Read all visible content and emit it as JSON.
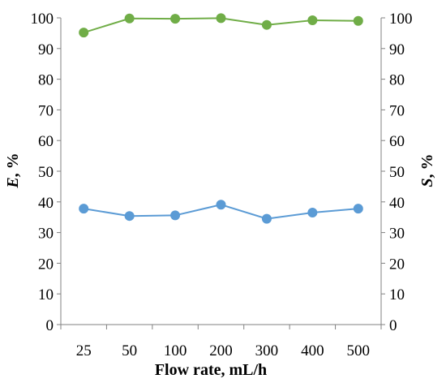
{
  "chart_data": {
    "type": "line",
    "categories": [
      "25",
      "50",
      "100",
      "200",
      "300",
      "400",
      "500"
    ],
    "xlabel": "Flow rate, mL/h",
    "ylabel_left": {
      "symbol": "E",
      "rest": ", %"
    },
    "ylabel_right": {
      "symbol": "S",
      "rest": ", %"
    },
    "ylim_left": [
      0,
      100
    ],
    "ylim_right": [
      0,
      100
    ],
    "yticks": [
      "0",
      "10",
      "20",
      "30",
      "40",
      "50",
      "60",
      "70",
      "80",
      "90",
      "100"
    ],
    "grid": false,
    "legend": "none",
    "series": [
      {
        "axis": "left",
        "color": "#5b9bd5",
        "values": [
          37.8,
          35.4,
          35.6,
          39.1,
          34.5,
          36.5,
          37.8
        ]
      },
      {
        "axis": "right",
        "color": "#70ad47",
        "values": [
          95.2,
          99.8,
          99.7,
          99.9,
          97.7,
          99.2,
          99.0
        ]
      }
    ]
  }
}
